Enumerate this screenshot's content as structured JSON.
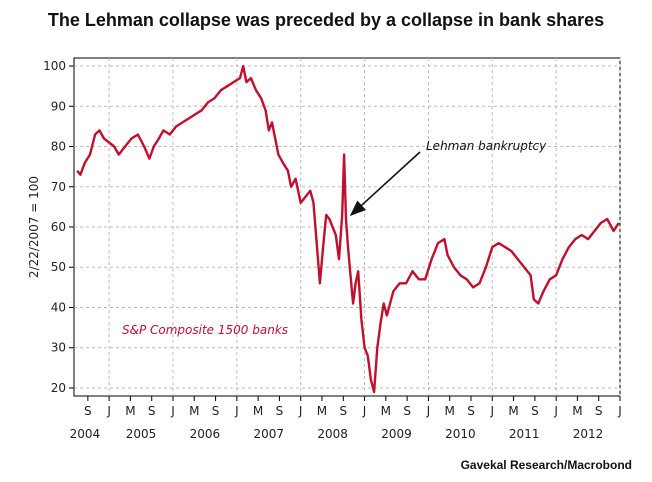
{
  "chart_data": {
    "type": "line",
    "title": "The Lehman collapse was preceded by a collapse in bank shares",
    "ylabel": "2/22/2007 = 100",
    "xlabel": "",
    "ylim": [
      18,
      102
    ],
    "xlim": [
      2004.45,
      2013.0
    ],
    "yticks": [
      20,
      30,
      40,
      50,
      60,
      70,
      80,
      90,
      100
    ],
    "grid": true,
    "month_ticks": [
      {
        "label": "S",
        "x": 2004.667
      },
      {
        "label": "J",
        "x": 2005.0
      },
      {
        "label": "M",
        "x": 2005.333
      },
      {
        "label": "S",
        "x": 2005.667
      },
      {
        "label": "J",
        "x": 2006.0
      },
      {
        "label": "M",
        "x": 2006.333
      },
      {
        "label": "S",
        "x": 2006.667
      },
      {
        "label": "J",
        "x": 2007.0
      },
      {
        "label": "M",
        "x": 2007.333
      },
      {
        "label": "S",
        "x": 2007.667
      },
      {
        "label": "J",
        "x": 2008.0
      },
      {
        "label": "M",
        "x": 2008.333
      },
      {
        "label": "S",
        "x": 2008.667
      },
      {
        "label": "J",
        "x": 2009.0
      },
      {
        "label": "M",
        "x": 2009.333
      },
      {
        "label": "S",
        "x": 2009.667
      },
      {
        "label": "J",
        "x": 2010.0
      },
      {
        "label": "M",
        "x": 2010.333
      },
      {
        "label": "S",
        "x": 2010.667
      },
      {
        "label": "J",
        "x": 2011.0
      },
      {
        "label": "M",
        "x": 2011.333
      },
      {
        "label": "S",
        "x": 2011.667
      },
      {
        "label": "J",
        "x": 2012.0
      },
      {
        "label": "M",
        "x": 2012.333
      },
      {
        "label": "S",
        "x": 2012.667
      },
      {
        "label": "J",
        "x": 2013.0
      }
    ],
    "year_labels": [
      {
        "label": "2004",
        "x": 2004.62
      },
      {
        "label": "2005",
        "x": 2005.5
      },
      {
        "label": "2006",
        "x": 2006.5
      },
      {
        "label": "2007",
        "x": 2007.5
      },
      {
        "label": "2008",
        "x": 2008.5
      },
      {
        "label": "2009",
        "x": 2009.5
      },
      {
        "label": "2010",
        "x": 2010.5
      },
      {
        "label": "2011",
        "x": 2011.5
      },
      {
        "label": "2012",
        "x": 2012.5
      }
    ],
    "series": [
      {
        "name": "S&P Composite 1500 banks",
        "color": "#c0102e",
        "x": [
          2004.5,
          2004.55,
          2004.62,
          2004.7,
          2004.78,
          2004.85,
          2004.92,
          2005.0,
          2005.08,
          2005.15,
          2005.25,
          2005.35,
          2005.45,
          2005.55,
          2005.63,
          2005.7,
          2005.78,
          2005.85,
          2005.95,
          2006.05,
          2006.15,
          2006.25,
          2006.35,
          2006.45,
          2006.55,
          2006.65,
          2006.75,
          2006.85,
          2006.95,
          2007.05,
          2007.1,
          2007.15,
          2007.22,
          2007.3,
          2007.38,
          2007.45,
          2007.5,
          2007.55,
          2007.6,
          2007.65,
          2007.72,
          2007.8,
          2007.85,
          2007.92,
          2008.0,
          2008.05,
          2008.1,
          2008.15,
          2008.2,
          2008.25,
          2008.3,
          2008.35,
          2008.4,
          2008.45,
          2008.5,
          2008.55,
          2008.6,
          2008.65,
          2008.68,
          2008.71,
          2008.74,
          2008.78,
          2008.82,
          2008.86,
          2008.9,
          2008.95,
          2009.0,
          2009.05,
          2009.1,
          2009.15,
          2009.2,
          2009.25,
          2009.3,
          2009.35,
          2009.45,
          2009.55,
          2009.65,
          2009.75,
          2009.85,
          2009.95,
          2010.05,
          2010.15,
          2010.25,
          2010.3,
          2010.4,
          2010.5,
          2010.6,
          2010.7,
          2010.8,
          2010.9,
          2011.0,
          2011.1,
          2011.2,
          2011.3,
          2011.4,
          2011.5,
          2011.55,
          2011.6,
          2011.65,
          2011.72,
          2011.8,
          2011.9,
          2012.0,
          2012.1,
          2012.2,
          2012.3,
          2012.4,
          2012.5,
          2012.6,
          2012.7,
          2012.8,
          2012.9,
          2012.98
        ],
        "values": [
          74,
          73,
          76,
          78,
          83,
          84,
          82,
          81,
          80,
          78,
          80,
          82,
          83,
          80,
          77,
          80,
          82,
          84,
          83,
          85,
          86,
          87,
          88,
          89,
          91,
          92,
          94,
          95,
          96,
          97,
          100,
          96,
          97,
          94,
          92,
          89,
          84,
          86,
          82,
          78,
          76,
          74,
          70,
          72,
          66,
          67,
          68,
          69,
          66,
          56,
          46,
          55,
          63,
          62,
          60,
          58,
          52,
          63,
          78,
          62,
          55,
          48,
          41,
          46,
          49,
          37,
          30,
          28,
          22,
          19,
          30,
          36,
          41,
          38,
          44,
          46,
          46,
          49,
          47,
          47,
          52,
          56,
          57,
          53,
          50,
          48,
          47,
          45,
          46,
          50,
          55,
          56,
          55,
          54,
          52,
          50,
          49,
          48,
          42,
          41,
          44,
          47,
          48,
          52,
          55,
          57,
          58,
          57,
          59,
          61,
          62,
          59,
          61
        ]
      }
    ],
    "series_label": "S&P Composite 1500 banks",
    "annotation": {
      "text": "Lehman bankruptcy",
      "x": 2008.71,
      "y": 62
    },
    "source": "Gavekal Research/Macrobond"
  }
}
